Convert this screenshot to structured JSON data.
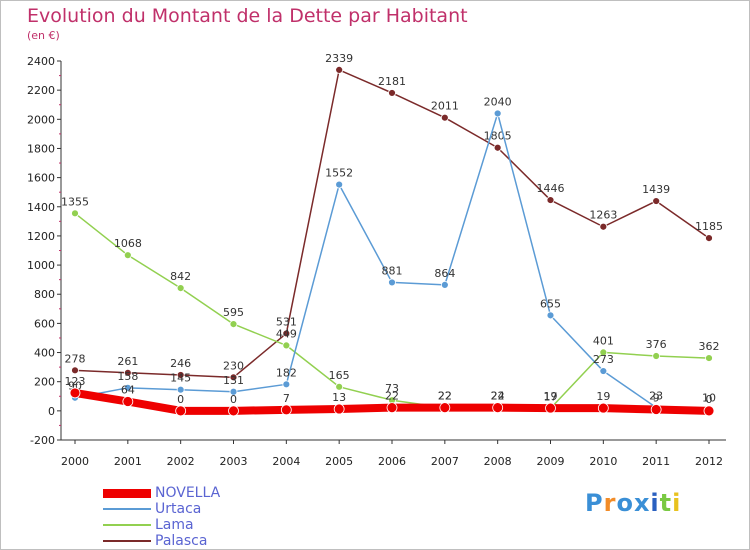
{
  "header": {
    "title": "Evolution du Montant de la Dette par Habitant",
    "subtitle": "(en €)"
  },
  "logo": {
    "letters": [
      "P",
      "r",
      "o",
      "x",
      "i",
      "t",
      "i"
    ],
    "colors": [
      "#3a8fd6",
      "#f28c28",
      "#3a8fd6",
      "#3a8fd6",
      "#2a60c0",
      "#7ac943",
      "#e8c21f"
    ]
  },
  "chart_data": {
    "type": "line",
    "title": "Evolution du Montant de la Dette par Habitant",
    "subtitle": "(en €)",
    "xlabel": "",
    "ylabel": "",
    "ylim": [
      -200,
      2400
    ],
    "yticks": [
      "-200",
      "0",
      "200",
      "400",
      "600",
      "800",
      "1000",
      "1200",
      "1400",
      "1600",
      "1800",
      "2000",
      "2200",
      "2400"
    ],
    "categories": [
      "2000",
      "2001",
      "2002",
      "2003",
      "2004",
      "2005",
      "2006",
      "2007",
      "2008",
      "2009",
      "2010",
      "2011",
      "2012"
    ],
    "legend_position": "bottom-left",
    "series": [
      {
        "name": "NOVELLA",
        "color": "#ee0000",
        "values": [
          123,
          64,
          0,
          0,
          7,
          13,
          22,
          22,
          22,
          19,
          19,
          9,
          0
        ]
      },
      {
        "name": "Urtaca",
        "color": "#5b9bd5",
        "values": [
          90,
          158,
          145,
          131,
          182,
          1552,
          881,
          864,
          2040,
          655,
          273,
          23,
          10
        ]
      },
      {
        "name": "Lama",
        "color": "#92d050",
        "values": [
          1355,
          1068,
          842,
          595,
          449,
          165,
          73,
          22,
          24,
          17,
          401,
          376,
          362
        ]
      },
      {
        "name": "Palasca",
        "color": "#7b2a2a",
        "values": [
          278,
          261,
          246,
          230,
          531,
          2339,
          2181,
          2011,
          1805,
          1446,
          1263,
          1439,
          1185
        ]
      }
    ]
  }
}
